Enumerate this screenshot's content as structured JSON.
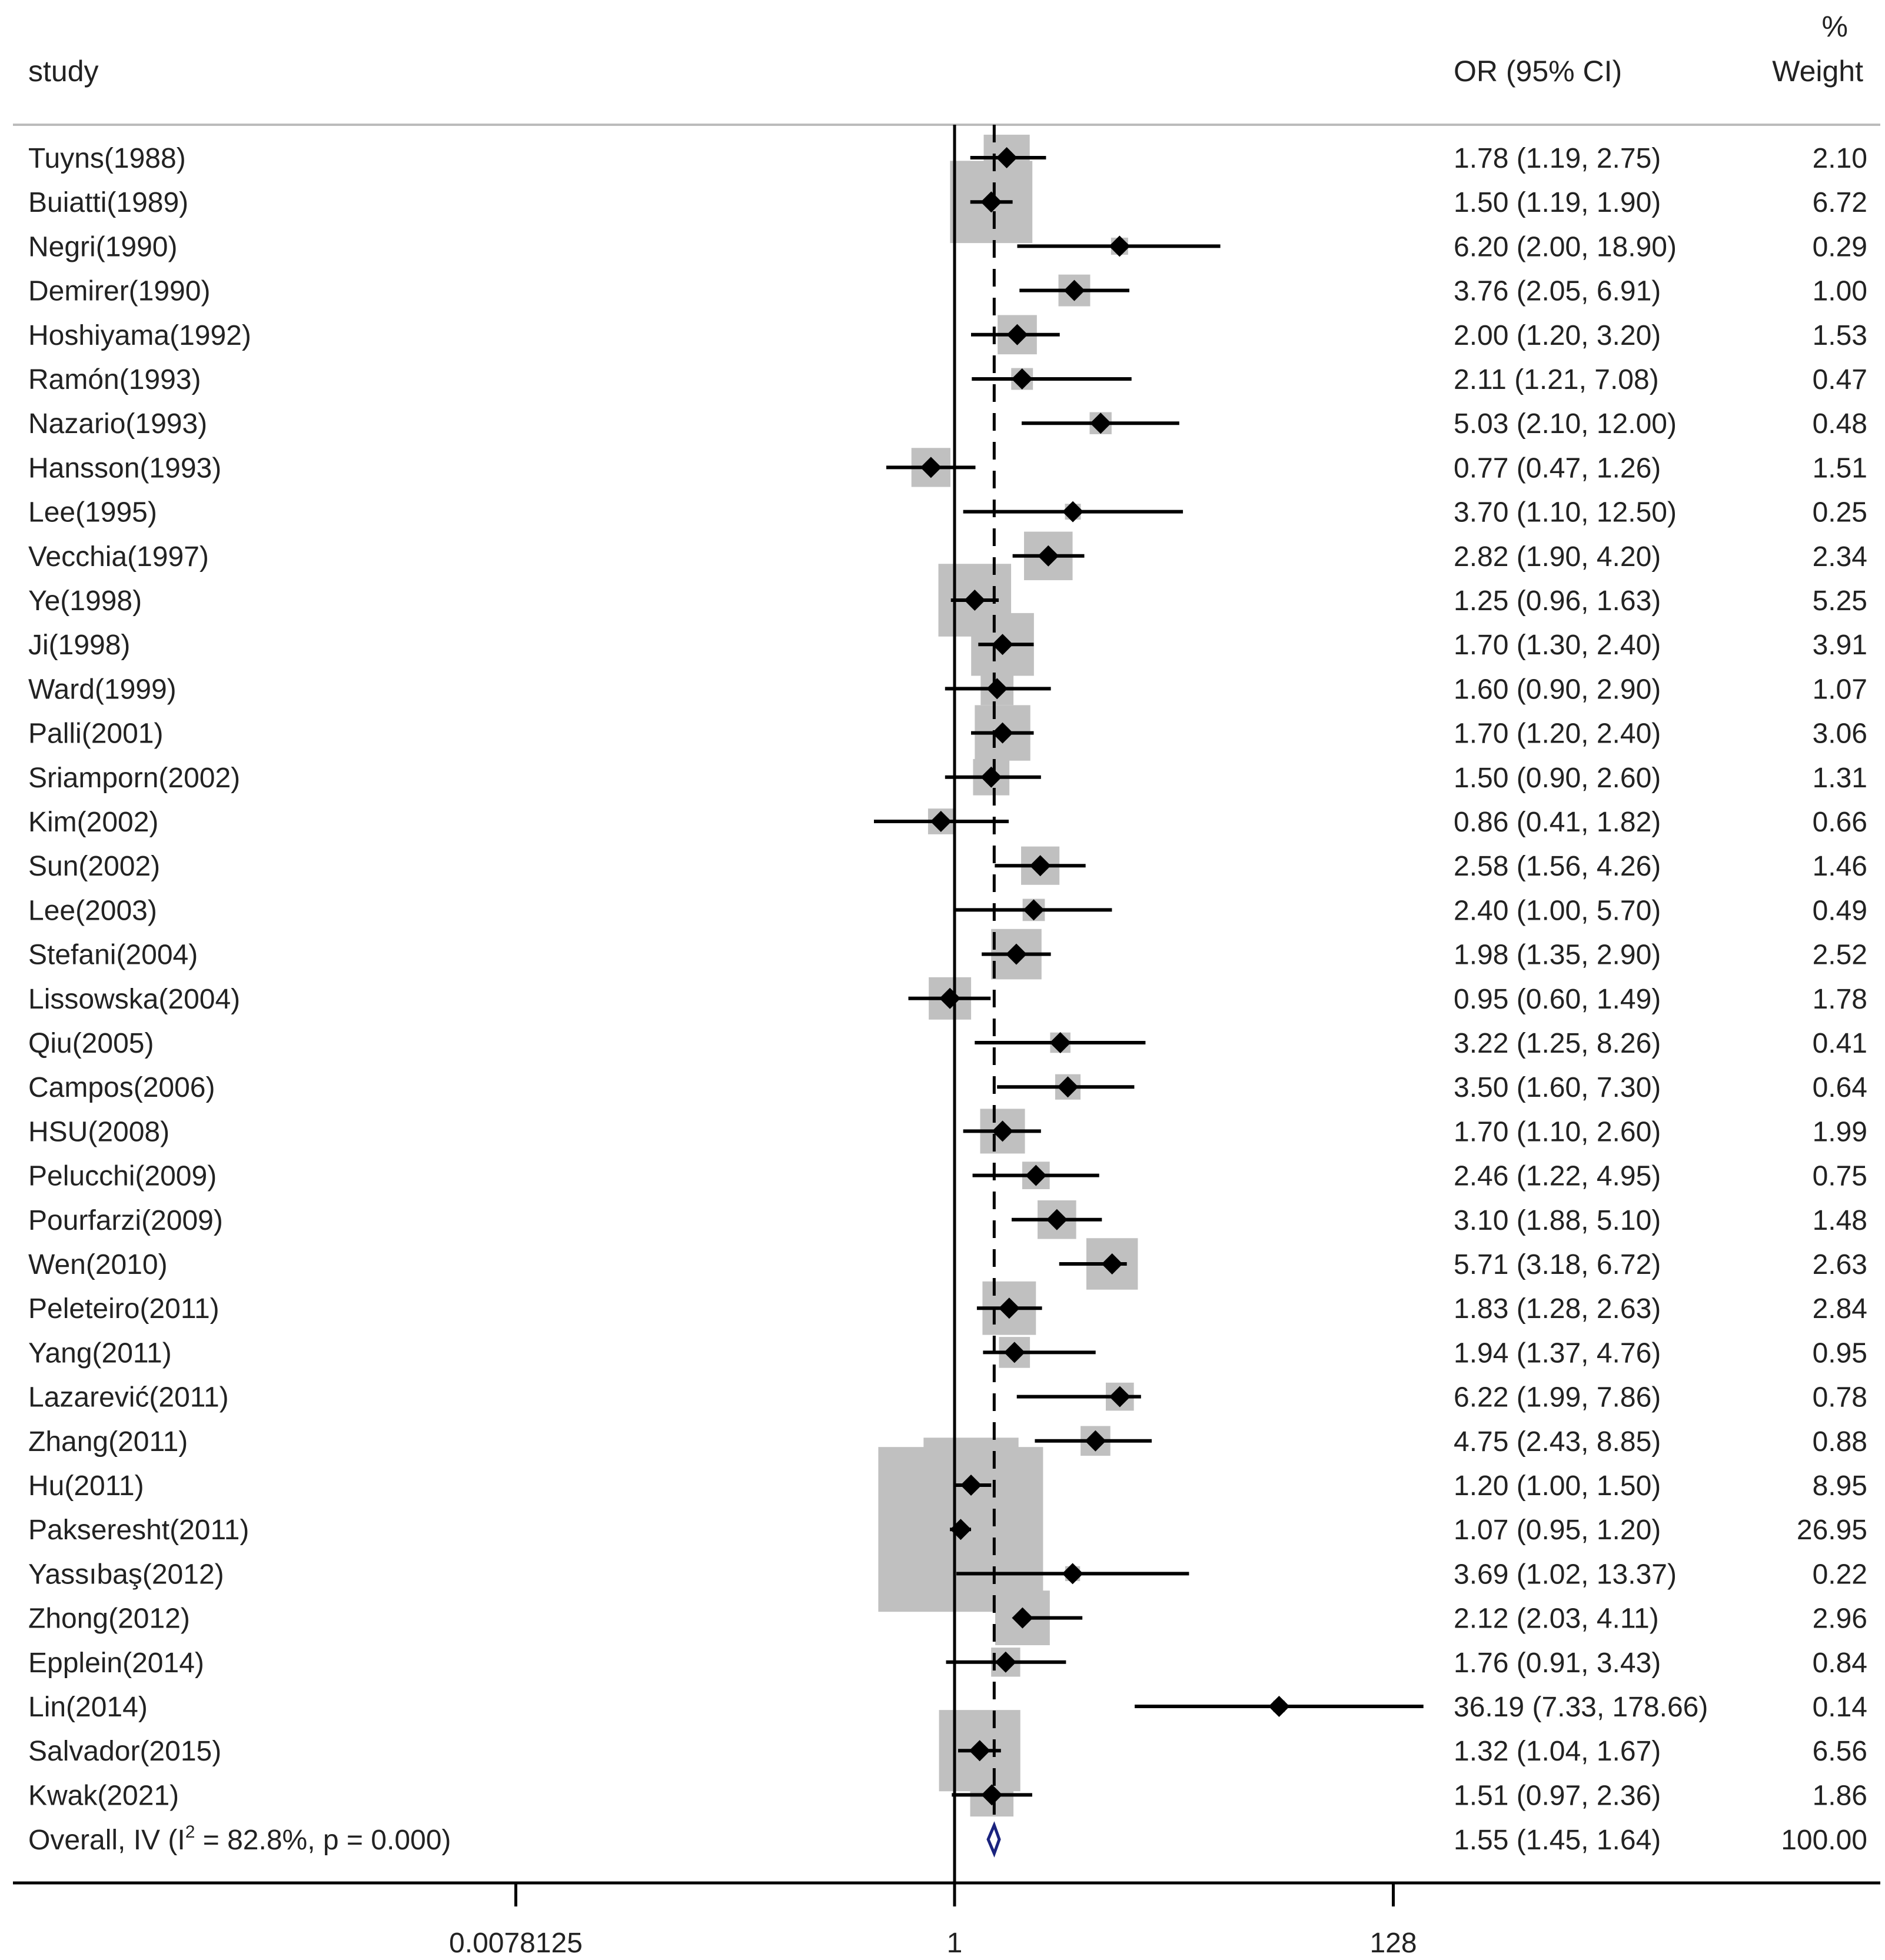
{
  "chart_data": {
    "type": "forest",
    "headers": {
      "study": "study",
      "ci": "OR (95% CI)",
      "weight_pct": "%",
      "weight": "Weight"
    },
    "x_scale": "log2",
    "xlim": [
      0.0078125,
      256
    ],
    "null_value": 1,
    "overall_reference": 1.55,
    "x_ticks": [
      {
        "value": 0.0078125,
        "label": "0.0078125"
      },
      {
        "value": 1,
        "label": "1"
      },
      {
        "value": 128,
        "label": "128"
      }
    ],
    "studies": [
      {
        "label": "Tuyns(1988)",
        "or": 1.78,
        "lo": 1.19,
        "hi": 2.75,
        "ci_text": "1.78 (1.19, 2.75)",
        "weight": 2.1,
        "weight_text": "2.10"
      },
      {
        "label": "Buiatti(1989)",
        "or": 1.5,
        "lo": 1.19,
        "hi": 1.9,
        "ci_text": "1.50 (1.19, 1.90)",
        "weight": 6.72,
        "weight_text": "6.72"
      },
      {
        "label": "Negri(1990)",
        "or": 6.2,
        "lo": 2.0,
        "hi": 18.9,
        "ci_text": "6.20 (2.00, 18.90)",
        "weight": 0.29,
        "weight_text": "0.29"
      },
      {
        "label": "Demirer(1990)",
        "or": 3.76,
        "lo": 2.05,
        "hi": 6.91,
        "ci_text": "3.76 (2.05, 6.91)",
        "weight": 1.0,
        "weight_text": "1.00"
      },
      {
        "label": "Hoshiyama(1992)",
        "or": 2.0,
        "lo": 1.2,
        "hi": 3.2,
        "ci_text": "2.00 (1.20, 3.20)",
        "weight": 1.53,
        "weight_text": "1.53"
      },
      {
        "label": "Ramón(1993)",
        "or": 2.11,
        "lo": 1.21,
        "hi": 7.08,
        "ci_text": "2.11 (1.21, 7.08)",
        "weight": 0.47,
        "weight_text": "0.47"
      },
      {
        "label": "Nazario(1993)",
        "or": 5.03,
        "lo": 2.1,
        "hi": 12.0,
        "ci_text": "5.03 (2.10, 12.00)",
        "weight": 0.48,
        "weight_text": "0.48"
      },
      {
        "label": "Hansson(1993)",
        "or": 0.77,
        "lo": 0.47,
        "hi": 1.26,
        "ci_text": "0.77 (0.47, 1.26)",
        "weight": 1.51,
        "weight_text": "1.51"
      },
      {
        "label": "Lee(1995)",
        "or": 3.7,
        "lo": 1.1,
        "hi": 12.5,
        "ci_text": "3.70 (1.10, 12.50)",
        "weight": 0.25,
        "weight_text": "0.25"
      },
      {
        "label": "Vecchia(1997)",
        "or": 2.82,
        "lo": 1.9,
        "hi": 4.2,
        "ci_text": "2.82 (1.90, 4.20)",
        "weight": 2.34,
        "weight_text": "2.34"
      },
      {
        "label": "Ye(1998)",
        "or": 1.25,
        "lo": 0.96,
        "hi": 1.63,
        "ci_text": "1.25 (0.96, 1.63)",
        "weight": 5.25,
        "weight_text": "5.25"
      },
      {
        "label": "Ji(1998)",
        "or": 1.7,
        "lo": 1.3,
        "hi": 2.4,
        "ci_text": "1.70 (1.30, 2.40)",
        "weight": 3.91,
        "weight_text": "3.91"
      },
      {
        "label": "Ward(1999)",
        "or": 1.6,
        "lo": 0.9,
        "hi": 2.9,
        "ci_text": "1.60 (0.90, 2.90)",
        "weight": 1.07,
        "weight_text": "1.07"
      },
      {
        "label": "Palli(2001)",
        "or": 1.7,
        "lo": 1.2,
        "hi": 2.4,
        "ci_text": "1.70 (1.20, 2.40)",
        "weight": 3.06,
        "weight_text": "3.06"
      },
      {
        "label": "Sriamporn(2002)",
        "or": 1.5,
        "lo": 0.9,
        "hi": 2.6,
        "ci_text": "1.50 (0.90, 2.60)",
        "weight": 1.31,
        "weight_text": "1.31"
      },
      {
        "label": "Kim(2002)",
        "or": 0.86,
        "lo": 0.41,
        "hi": 1.82,
        "ci_text": "0.86 (0.41, 1.82)",
        "weight": 0.66,
        "weight_text": "0.66"
      },
      {
        "label": "Sun(2002)",
        "or": 2.58,
        "lo": 1.56,
        "hi": 4.26,
        "ci_text": "2.58 (1.56, 4.26)",
        "weight": 1.46,
        "weight_text": "1.46"
      },
      {
        "label": "Lee(2003)",
        "or": 2.4,
        "lo": 1.0,
        "hi": 5.7,
        "ci_text": "2.40 (1.00, 5.70)",
        "weight": 0.49,
        "weight_text": "0.49"
      },
      {
        "label": "Stefani(2004)",
        "or": 1.98,
        "lo": 1.35,
        "hi": 2.9,
        "ci_text": "1.98 (1.35, 2.90)",
        "weight": 2.52,
        "weight_text": "2.52"
      },
      {
        "label": "Lissowska(2004)",
        "or": 0.95,
        "lo": 0.6,
        "hi": 1.49,
        "ci_text": "0.95 (0.60, 1.49)",
        "weight": 1.78,
        "weight_text": "1.78"
      },
      {
        "label": "Qiu(2005)",
        "or": 3.22,
        "lo": 1.25,
        "hi": 8.26,
        "ci_text": "3.22 (1.25, 8.26)",
        "weight": 0.41,
        "weight_text": "0.41"
      },
      {
        "label": "Campos(2006)",
        "or": 3.5,
        "lo": 1.6,
        "hi": 7.3,
        "ci_text": "3.50 (1.60, 7.30)",
        "weight": 0.64,
        "weight_text": "0.64"
      },
      {
        "label": "HSU(2008)",
        "or": 1.7,
        "lo": 1.1,
        "hi": 2.6,
        "ci_text": "1.70 (1.10, 2.60)",
        "weight": 1.99,
        "weight_text": "1.99"
      },
      {
        "label": "Pelucchi(2009)",
        "or": 2.46,
        "lo": 1.22,
        "hi": 4.95,
        "ci_text": "2.46 (1.22, 4.95)",
        "weight": 0.75,
        "weight_text": "0.75"
      },
      {
        "label": "Pourfarzi(2009)",
        "or": 3.1,
        "lo": 1.88,
        "hi": 5.1,
        "ci_text": "3.10 (1.88, 5.10)",
        "weight": 1.48,
        "weight_text": "1.48"
      },
      {
        "label": "Wen(2010)",
        "or": 5.71,
        "lo": 3.18,
        "hi": 6.72,
        "ci_text": "5.71 (3.18, 6.72)",
        "weight": 2.63,
        "weight_text": "2.63"
      },
      {
        "label": "Peleteiro(2011)",
        "or": 1.83,
        "lo": 1.28,
        "hi": 2.63,
        "ci_text": "1.83 (1.28, 2.63)",
        "weight": 2.84,
        "weight_text": "2.84"
      },
      {
        "label": "Yang(2011)",
        "or": 1.94,
        "lo": 1.37,
        "hi": 4.76,
        "ci_text": "1.94 (1.37, 4.76)",
        "weight": 0.95,
        "weight_text": "0.95"
      },
      {
        "label": "Lazarević(2011)",
        "or": 6.22,
        "lo": 1.99,
        "hi": 7.86,
        "ci_text": "6.22 (1.99, 7.86)",
        "weight": 0.78,
        "weight_text": "0.78"
      },
      {
        "label": "Zhang(2011)",
        "or": 4.75,
        "lo": 2.43,
        "hi": 8.85,
        "ci_text": "4.75 (2.43, 8.85)",
        "weight": 0.88,
        "weight_text": "0.88"
      },
      {
        "label": "Hu(2011)",
        "or": 1.2,
        "lo": 1.0,
        "hi": 1.5,
        "ci_text": "1.20 (1.00, 1.50)",
        "weight": 8.95,
        "weight_text": "8.95"
      },
      {
        "label": "Pakseresht(2011)",
        "or": 1.07,
        "lo": 0.95,
        "hi": 1.2,
        "ci_text": "1.07 (0.95, 1.20)",
        "weight": 26.95,
        "weight_text": "26.95"
      },
      {
        "label": "Yassıbaş(2012)",
        "or": 3.69,
        "lo": 1.02,
        "hi": 13.37,
        "ci_text": "3.69 (1.02, 13.37)",
        "weight": 0.22,
        "weight_text": "0.22"
      },
      {
        "label": "Zhong(2012)",
        "or": 2.12,
        "lo": 2.03,
        "hi": 4.11,
        "ci_text": "2.12 (2.03, 4.11)",
        "weight": 2.96,
        "weight_text": "2.96"
      },
      {
        "label": "Epplein(2014)",
        "or": 1.76,
        "lo": 0.91,
        "hi": 3.43,
        "ci_text": "1.76 (0.91, 3.43)",
        "weight": 0.84,
        "weight_text": "0.84"
      },
      {
        "label": "Lin(2014)",
        "or": 36.19,
        "lo": 7.33,
        "hi": 178.66,
        "ci_text": "36.19 (7.33, 178.66)",
        "weight": 0.14,
        "weight_text": "0.14"
      },
      {
        "label": "Salvador(2015)",
        "or": 1.32,
        "lo": 1.04,
        "hi": 1.67,
        "ci_text": "1.32 (1.04, 1.67)",
        "weight": 6.56,
        "weight_text": "6.56"
      },
      {
        "label": "Kwak(2021)",
        "or": 1.51,
        "lo": 0.97,
        "hi": 2.36,
        "ci_text": "1.51 (0.97, 2.36)",
        "weight": 1.86,
        "weight_text": "1.86"
      }
    ],
    "overall": {
      "label_prefix": "Overall, IV (I",
      "label_sup": "2",
      "label_suffix": " = 82.8%, p = 0.000)",
      "or": 1.55,
      "lo": 1.45,
      "hi": 1.64,
      "ci_text": "1.55 (1.45, 1.64)",
      "weight": 100.0,
      "weight_text": "100.00"
    },
    "colors": {
      "box": "#c0c0c0",
      "marker": "#000000",
      "diamond": "#1a237e",
      "text": "#222222"
    }
  }
}
